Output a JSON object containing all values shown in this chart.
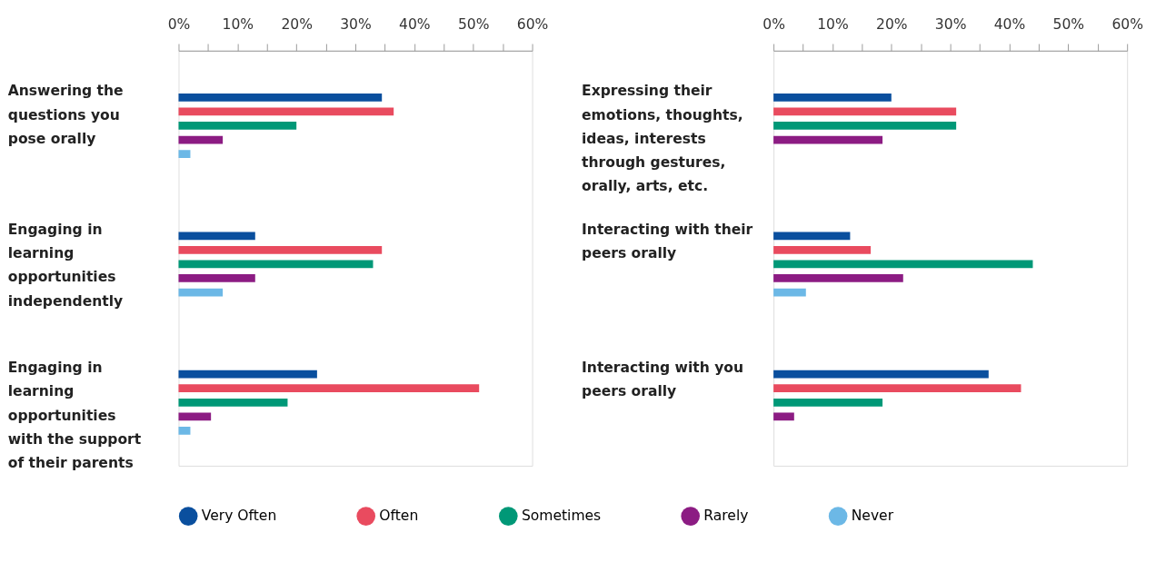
{
  "chart_data": [
    {
      "type": "bar",
      "orientation": "horizontal",
      "categories": [
        "Answering the questions you pose orally",
        "Engaging in learning opportunities independently",
        "Engaging in learning opportunities with the support of their parents"
      ],
      "series": [
        {
          "name": "Very Often",
          "color": "#0a4f9e",
          "values": [
            34.5,
            13,
            23.5
          ]
        },
        {
          "name": "Often",
          "color": "#e94b5f",
          "values": [
            36.5,
            34.5,
            51
          ]
        },
        {
          "name": "Sometimes",
          "color": "#009877",
          "values": [
            20,
            33,
            18.5
          ]
        },
        {
          "name": "Rarely",
          "color": "#8c1c83",
          "values": [
            7.5,
            13,
            5.5
          ]
        },
        {
          "name": "Never",
          "color": "#6cb8e6",
          "values": [
            2,
            7.5,
            2
          ]
        }
      ],
      "xlim": [
        0,
        60
      ],
      "xticks": [
        {
          "value": 0,
          "label": "0%"
        },
        {
          "value": 5,
          "label": null
        },
        {
          "value": 10,
          "label": "10%"
        },
        {
          "value": 15,
          "label": null
        },
        {
          "value": 20,
          "label": "20%"
        },
        {
          "value": 25,
          "label": null
        },
        {
          "value": 30,
          "label": "30%"
        },
        {
          "value": 35,
          "label": null
        },
        {
          "value": 40,
          "label": "40%"
        },
        {
          "value": 45,
          "label": null
        },
        {
          "value": 50,
          "label": "50%"
        },
        {
          "value": 55,
          "label": null
        },
        {
          "value": 60,
          "label": "60%"
        }
      ],
      "grid": false,
      "legend": "bottom"
    },
    {
      "type": "bar",
      "orientation": "horizontal",
      "categories": [
        "Expressing their emotions, thoughts, ideas, interests through gestures, orally, arts, etc.",
        "Interacting with their peers orally",
        "Interacting with you peers orally"
      ],
      "series": [
        {
          "name": "Very Often",
          "color": "#0a4f9e",
          "values": [
            20,
            13,
            36.5
          ]
        },
        {
          "name": "Often",
          "color": "#e94b5f",
          "values": [
            31,
            16.5,
            42
          ]
        },
        {
          "name": "Sometimes",
          "color": "#009877",
          "values": [
            31,
            44,
            18.5
          ]
        },
        {
          "name": "Rarely",
          "color": "#8c1c83",
          "values": [
            18.5,
            22,
            3.5
          ]
        },
        {
          "name": "Never",
          "color": "#6cb8e6",
          "values": [
            null,
            5.5,
            null
          ]
        }
      ],
      "xlim": [
        0,
        60
      ],
      "xticks": [
        {
          "value": 0,
          "label": "0%"
        },
        {
          "value": 5,
          "label": null
        },
        {
          "value": 10,
          "label": "10%"
        },
        {
          "value": 15,
          "label": null
        },
        {
          "value": 20,
          "label": "20%"
        },
        {
          "value": 25,
          "label": null
        },
        {
          "value": 30,
          "label": "30%"
        },
        {
          "value": 35,
          "label": null
        },
        {
          "value": 40,
          "label": "40%"
        },
        {
          "value": 45,
          "label": null
        },
        {
          "value": 50,
          "label": "50%"
        },
        {
          "value": 55,
          "label": null
        },
        {
          "value": 60,
          "label": "60%"
        }
      ],
      "grid": false,
      "legend": "bottom"
    }
  ]
}
